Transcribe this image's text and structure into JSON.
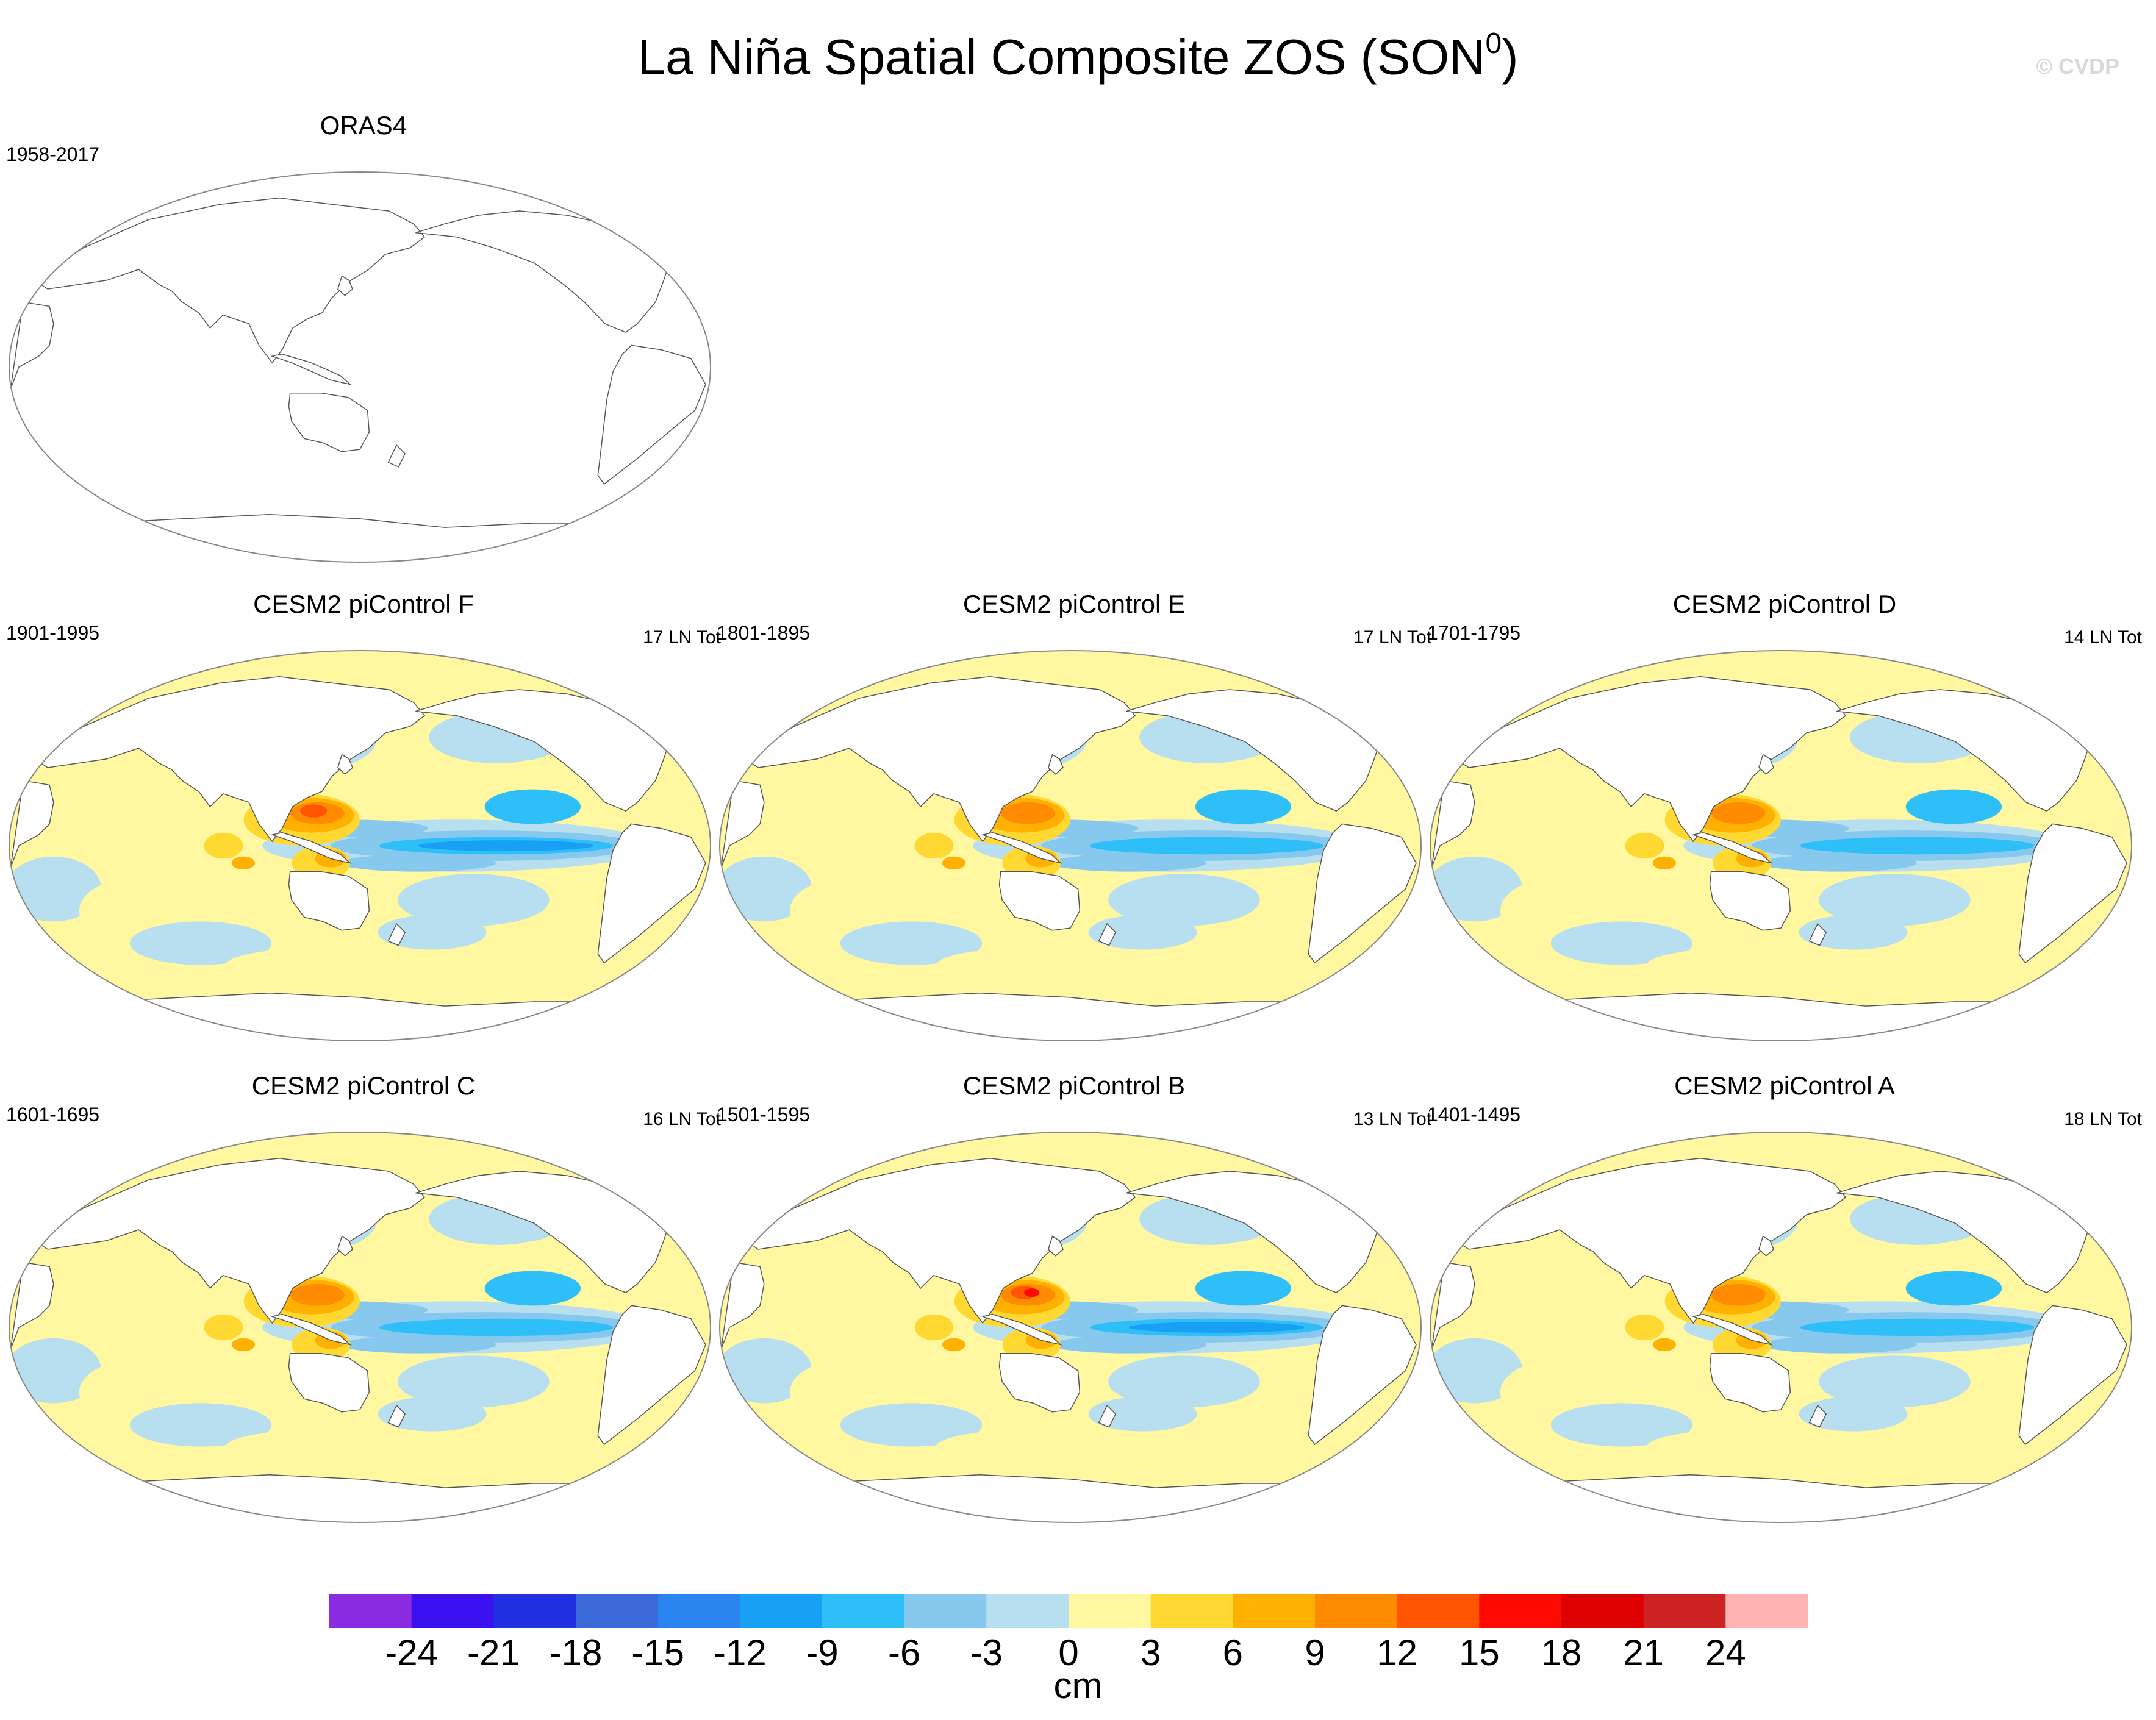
{
  "figure": {
    "title_main": "La Niña Spatial Composite ZOS (SON",
    "title_sup": "0",
    "title_end": ")",
    "watermark": "© CVDP"
  },
  "panels": [
    {
      "id": "oras4",
      "title": "ORAS4",
      "period": "1958-2017",
      "count": "",
      "filled": false,
      "strength": 0
    },
    {
      "id": "f",
      "title": "CESM2 piControl F",
      "period": "1901-1995",
      "count": "17 LN Tot",
      "filled": true,
      "strength": 0.85
    },
    {
      "id": "e",
      "title": "CESM2 piControl E",
      "period": "1801-1895",
      "count": "17 LN Tot",
      "filled": true,
      "strength": 0.8
    },
    {
      "id": "d",
      "title": "CESM2 piControl D",
      "period": "1701-1795",
      "count": "14 LN Tot",
      "filled": true,
      "strength": 0.7
    },
    {
      "id": "c",
      "title": "CESM2 piControl C",
      "period": "1601-1695",
      "count": "16 LN Tot",
      "filled": true,
      "strength": 0.75
    },
    {
      "id": "b",
      "title": "CESM2 piControl B",
      "period": "1501-1595",
      "count": "13 LN Tot",
      "filled": true,
      "strength": 1.0
    },
    {
      "id": "a",
      "title": "CESM2 piControl A",
      "period": "1401-1495",
      "count": "18 LN Tot",
      "filled": true,
      "strength": 0.75
    }
  ],
  "colorbar": {
    "units": "cm",
    "labels": [
      "-24",
      "-21",
      "-18",
      "-15",
      "-12",
      "-9",
      "-6",
      "-3",
      "0",
      "3",
      "6",
      "9",
      "12",
      "15",
      "18",
      "21",
      "24"
    ],
    "colors": [
      "#8a2be2",
      "#3a10f0",
      "#2030e0",
      "#3a6ad8",
      "#2a84ef",
      "#18a0f5",
      "#2ebef8",
      "#86c8ee",
      "#b8dff0",
      "#fff8a0",
      "#ffd932",
      "#ffb000",
      "#ff8c00",
      "#ff5500",
      "#ff0a00",
      "#dd0000",
      "#cc2222",
      "#ffb4b4"
    ]
  }
}
